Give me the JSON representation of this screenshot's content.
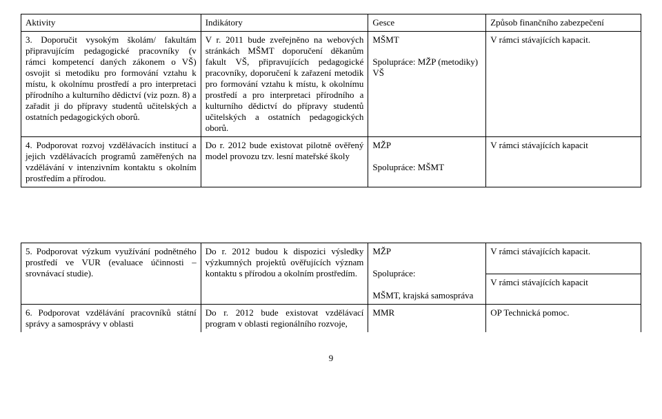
{
  "table1": {
    "headers": [
      "Aktivity",
      "Indikátory",
      "Gesce",
      "Způsob finančního zabezpečení"
    ],
    "rows": [
      {
        "c1": "3. Doporučit vysokým školám/ fakultám připravujícím pedagogické pracovníky (v rámci kompetencí daných zákonem o VŠ) osvojit si metodiku pro formování vztahu k místu, k okolnímu prostředí a pro interpretaci přírodního a kulturního dědictví (viz pozn. 8) a zařadit ji do přípravy studentů učitelských a ostatních pedagogických oborů.",
        "c2": "V r. 2011 bude zveřejněno na webových stránkách MŠMT doporučení děkanům fakult VŠ, připravujících pedagogické pracovníky, doporučení k zařazení metodik pro formování vztahu k místu, k okolnímu prostředí a pro interpretaci přírodního a kulturního dědictví do přípravy studentů učitelských a ostatních pedagogických oborů.",
        "c3": "MŠMT\n\nSpolupráce: MŽP (metodiky) VŠ",
        "c4": "V rámci stávajících kapacit."
      },
      {
        "c1": "4. Podporovat rozvoj vzdělávacích institucí a jejich vzdělávacích programů zaměřených na vzdělávání v intenzivním kontaktu s okolním prostředím a přírodou.",
        "c2": "Do r. 2012 bude existovat pilotně ověřený model provozu tzv. lesní mateřské školy",
        "c3": "MŽP\n\nSpolupráce: MŠMT",
        "c4": "V rámci stávajících kapacit"
      }
    ]
  },
  "table2": {
    "rows": [
      {
        "c1": "5. Podporovat výzkum využívání podnětného prostředí ve VUR (evaluace účinnosti – srovnávací studie).",
        "c2": "Do r. 2012 budou k dispozici výsledky výzkumných projektů ověřujících význam kontaktu s přírodou a okolním prostředím.",
        "c3": "MŽP\n\nSpolupráce:\n\nMŠMT, krajská samospráva",
        "c4a": "V rámci stávajících kapacit.",
        "c4b": "V rámci stávajících kapacit"
      },
      {
        "c1": "6. Podporovat vzdělávání pracovníků státní správy a samosprávy v oblasti",
        "c2": "Do r. 2012 bude existovat vzdělávací program v oblasti regionálního rozvoje,",
        "c3": "MMR",
        "c4": "OP Technická pomoc."
      }
    ]
  },
  "page_number": "9"
}
